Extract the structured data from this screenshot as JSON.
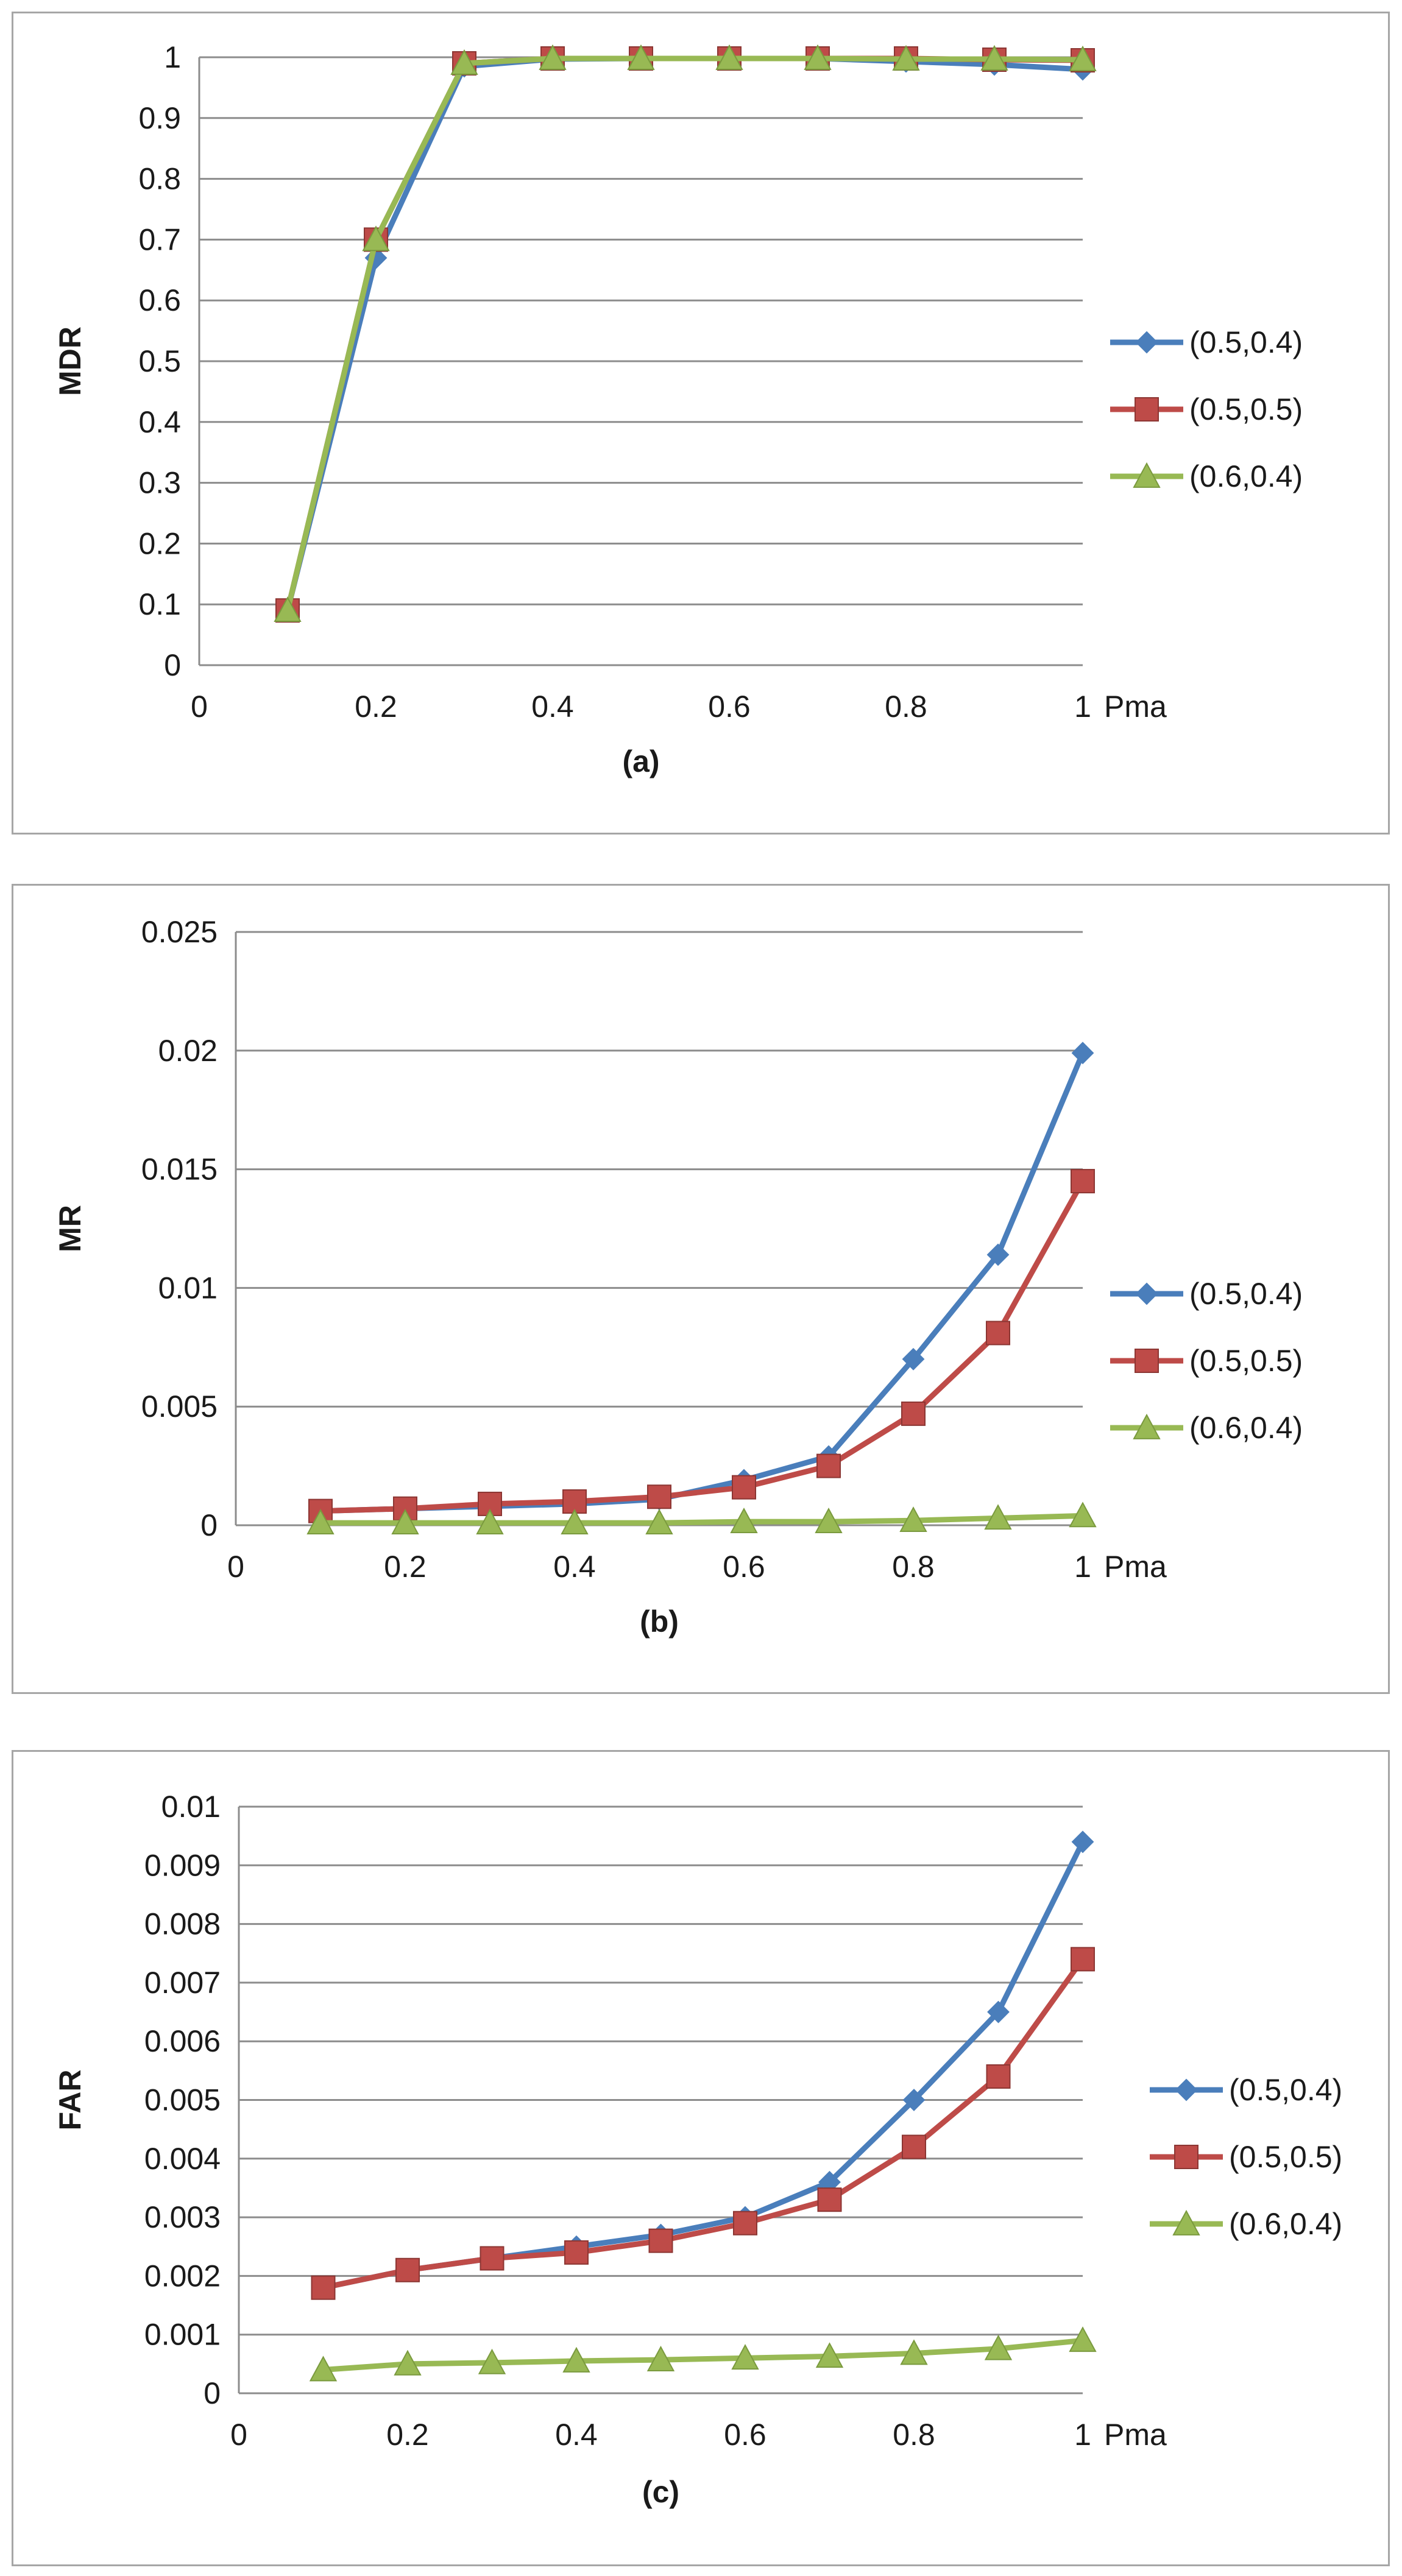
{
  "chart_data": [
    {
      "type": "line",
      "subtitle": "(a)",
      "ylabel": "MDR",
      "xlabel": "Pma",
      "xlim": [
        0,
        1
      ],
      "ylim": [
        0,
        1
      ],
      "xticks": [
        "0",
        "0.2",
        "0.4",
        "0.6",
        "0.8",
        "1"
      ],
      "yticks": [
        "0",
        "0.1",
        "0.2",
        "0.3",
        "0.4",
        "0.5",
        "0.6",
        "0.7",
        "0.8",
        "0.9",
        "1"
      ],
      "grid": true,
      "legend_position": "right",
      "x": [
        0.1,
        0.2,
        0.3,
        0.4,
        0.5,
        0.6,
        0.7,
        0.8,
        0.9,
        1.0
      ],
      "series": [
        {
          "name": "(0.5,0.4)",
          "color": "#4a7ebb",
          "marker": "diamond",
          "values": [
            0.09,
            0.67,
            0.985,
            0.997,
            0.998,
            0.998,
            0.998,
            0.993,
            0.988,
            0.98
          ]
        },
        {
          "name": "(0.5,0.5)",
          "color": "#be4b48",
          "marker": "square",
          "values": [
            0.09,
            0.7,
            0.99,
            0.998,
            0.998,
            0.998,
            0.998,
            0.998,
            0.996,
            0.995
          ]
        },
        {
          "name": "(0.6,0.4)",
          "color": "#98b954",
          "marker": "triangle",
          "values": [
            0.09,
            0.7,
            0.99,
            0.998,
            0.998,
            0.998,
            0.998,
            0.997,
            0.997,
            0.996
          ]
        }
      ]
    },
    {
      "type": "line",
      "subtitle": "(b)",
      "ylabel": "MR",
      "xlabel": "Pma",
      "xlim": [
        0,
        1
      ],
      "ylim": [
        0,
        0.025
      ],
      "xticks": [
        "0",
        "0.2",
        "0.4",
        "0.6",
        "0.8",
        "1"
      ],
      "yticks": [
        "0",
        "0.005",
        "0.01",
        "0.015",
        "0.02",
        "0.025"
      ],
      "grid": true,
      "legend_position": "right",
      "x": [
        0.1,
        0.2,
        0.3,
        0.4,
        0.5,
        0.6,
        0.7,
        0.8,
        0.9,
        1.0
      ],
      "series": [
        {
          "name": "(0.5,0.4)",
          "color": "#4a7ebb",
          "marker": "diamond",
          "values": [
            0.0006,
            0.0007,
            0.0008,
            0.0009,
            0.0011,
            0.0019,
            0.0029,
            0.007,
            0.0114,
            0.0199
          ]
        },
        {
          "name": "(0.5,0.5)",
          "color": "#be4b48",
          "marker": "square",
          "values": [
            0.0006,
            0.0007,
            0.0009,
            0.001,
            0.0012,
            0.0016,
            0.0025,
            0.0047,
            0.0081,
            0.0145
          ]
        },
        {
          "name": "(0.6,0.4)",
          "color": "#98b954",
          "marker": "triangle",
          "values": [
            0.0001,
            0.0001,
            0.0001,
            0.0001,
            0.0001,
            0.00015,
            0.00015,
            0.0002,
            0.0003,
            0.0004
          ]
        }
      ]
    },
    {
      "type": "line",
      "subtitle": "(c)",
      "ylabel": "FAR",
      "xlabel": "Pma",
      "xlim": [
        0,
        1
      ],
      "ylim": [
        0,
        0.01
      ],
      "xticks": [
        "0",
        "0.2",
        "0.4",
        "0.6",
        "0.8",
        "1"
      ],
      "yticks": [
        "0",
        "0.001",
        "0.002",
        "0.003",
        "0.004",
        "0.005",
        "0.006",
        "0.007",
        "0.008",
        "0.009",
        "0.01"
      ],
      "grid": true,
      "legend_position": "right",
      "x": [
        0.1,
        0.2,
        0.3,
        0.4,
        0.5,
        0.6,
        0.7,
        0.8,
        0.9,
        1.0
      ],
      "series": [
        {
          "name": "(0.5,0.4)",
          "color": "#4a7ebb",
          "marker": "diamond",
          "values": [
            0.0018,
            0.0021,
            0.0023,
            0.0025,
            0.0027,
            0.003,
            0.0036,
            0.005,
            0.0065,
            0.0094
          ]
        },
        {
          "name": "(0.5,0.5)",
          "color": "#be4b48",
          "marker": "square",
          "values": [
            0.0018,
            0.0021,
            0.0023,
            0.0024,
            0.0026,
            0.0029,
            0.0033,
            0.0042,
            0.0054,
            0.0074
          ]
        },
        {
          "name": "(0.6,0.4)",
          "color": "#98b954",
          "marker": "triangle",
          "values": [
            0.0004,
            0.0005,
            0.00052,
            0.00055,
            0.00057,
            0.0006,
            0.00063,
            0.00068,
            0.00076,
            0.0009
          ]
        }
      ]
    }
  ]
}
